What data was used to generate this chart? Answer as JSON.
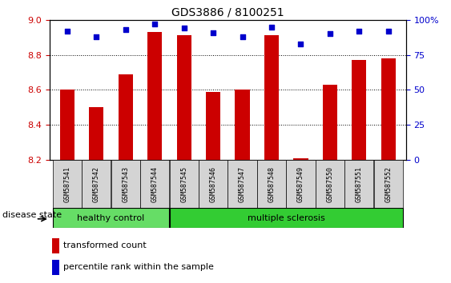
{
  "title": "GDS3886 / 8100251",
  "samples": [
    "GSM587541",
    "GSM587542",
    "GSM587543",
    "GSM587544",
    "GSM587545",
    "GSM587546",
    "GSM587547",
    "GSM587548",
    "GSM587549",
    "GSM587550",
    "GSM587551",
    "GSM587552"
  ],
  "transformed_count": [
    8.6,
    8.5,
    8.69,
    8.93,
    8.91,
    8.59,
    8.6,
    8.91,
    8.21,
    8.63,
    8.77,
    8.78
  ],
  "percentile_rank": [
    92,
    88,
    93,
    97,
    94,
    91,
    88,
    95,
    83,
    90,
    92,
    92
  ],
  "ylim_left": [
    8.2,
    9.0
  ],
  "ylim_right": [
    0,
    100
  ],
  "yticks_left": [
    8.2,
    8.4,
    8.6,
    8.8,
    9.0
  ],
  "yticks_right": [
    0,
    25,
    50,
    75,
    100
  ],
  "bar_color": "#CC0000",
  "dot_color": "#0000CC",
  "healthy_control_count": 4,
  "healthy_color": "#66DD66",
  "ms_color": "#33CC33",
  "label_healthy": "healthy control",
  "label_ms": "multiple sclerosis",
  "disease_state_label": "disease state",
  "legend_bar_label": "transformed count",
  "legend_dot_label": "percentile rank within the sample",
  "ylabel_left_color": "#CC0000",
  "ylabel_right_color": "#0000CC",
  "label_fontsize": 8,
  "tick_fontsize": 8,
  "sample_fontsize": 6
}
